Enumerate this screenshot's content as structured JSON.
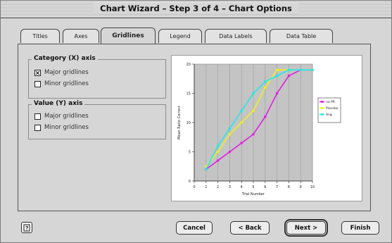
{
  "window": {
    "title": "Chart Wizard – Step 3 of 4 – Chart Options"
  },
  "tabs": [
    {
      "label": "Titles",
      "active": false
    },
    {
      "label": "Axes",
      "active": false
    },
    {
      "label": "Gridlines",
      "active": true
    },
    {
      "label": "Legend",
      "active": false
    },
    {
      "label": "Data Labels",
      "active": false
    },
    {
      "label": "Data Table",
      "active": false
    }
  ],
  "category_axis": {
    "title": "Category (X) axis",
    "major": {
      "label": "Major gridlines",
      "checked": true
    },
    "minor": {
      "label": "Minor gridlines",
      "checked": false
    }
  },
  "value_axis": {
    "title": "Value (Y) axis",
    "major": {
      "label": "Major gridlines",
      "checked": false
    },
    "minor": {
      "label": "Minor gridlines",
      "checked": false
    }
  },
  "buttons": {
    "cancel": "Cancel",
    "back": "< Back",
    "next": "Next >",
    "finish": "Finish"
  },
  "help_icon": "help-icon",
  "chart_data": {
    "type": "line",
    "xlabel": "Trial Number",
    "ylabel": "Mean Ratio Correct",
    "x": [
      0,
      1,
      2,
      3,
      4,
      5,
      6,
      7,
      8,
      9,
      10
    ],
    "xlim": [
      0,
      10
    ],
    "ylim": [
      0,
      20
    ],
    "y_ticks": [
      0,
      5,
      10,
      15,
      20
    ],
    "grid_major_x": true,
    "series": [
      {
        "name": "no PR",
        "color": "#e020e0",
        "x": [
          1,
          2,
          3,
          4,
          5,
          6,
          7,
          8,
          9,
          10
        ],
        "values": [
          2.0,
          3.5,
          5.0,
          6.5,
          8.0,
          11.0,
          15.0,
          18.0,
          19.0,
          19.0
        ]
      },
      {
        "name": "Placebo",
        "color": "#f0f020",
        "x": [
          1,
          2,
          3,
          4,
          5,
          6,
          7,
          8,
          9,
          10
        ],
        "values": [
          2.5,
          5.0,
          8.0,
          10.0,
          12.0,
          16.0,
          19.0,
          19.0,
          19.0,
          19.0
        ]
      },
      {
        "name": "Ang",
        "color": "#20e8e8",
        "x": [
          1,
          2,
          3,
          4,
          5,
          6,
          7,
          8,
          9,
          10
        ],
        "values": [
          2.0,
          6.0,
          9.0,
          12.0,
          15.0,
          17.0,
          18.0,
          19.0,
          19.0,
          19.0
        ]
      }
    ],
    "legend_position": "right"
  }
}
